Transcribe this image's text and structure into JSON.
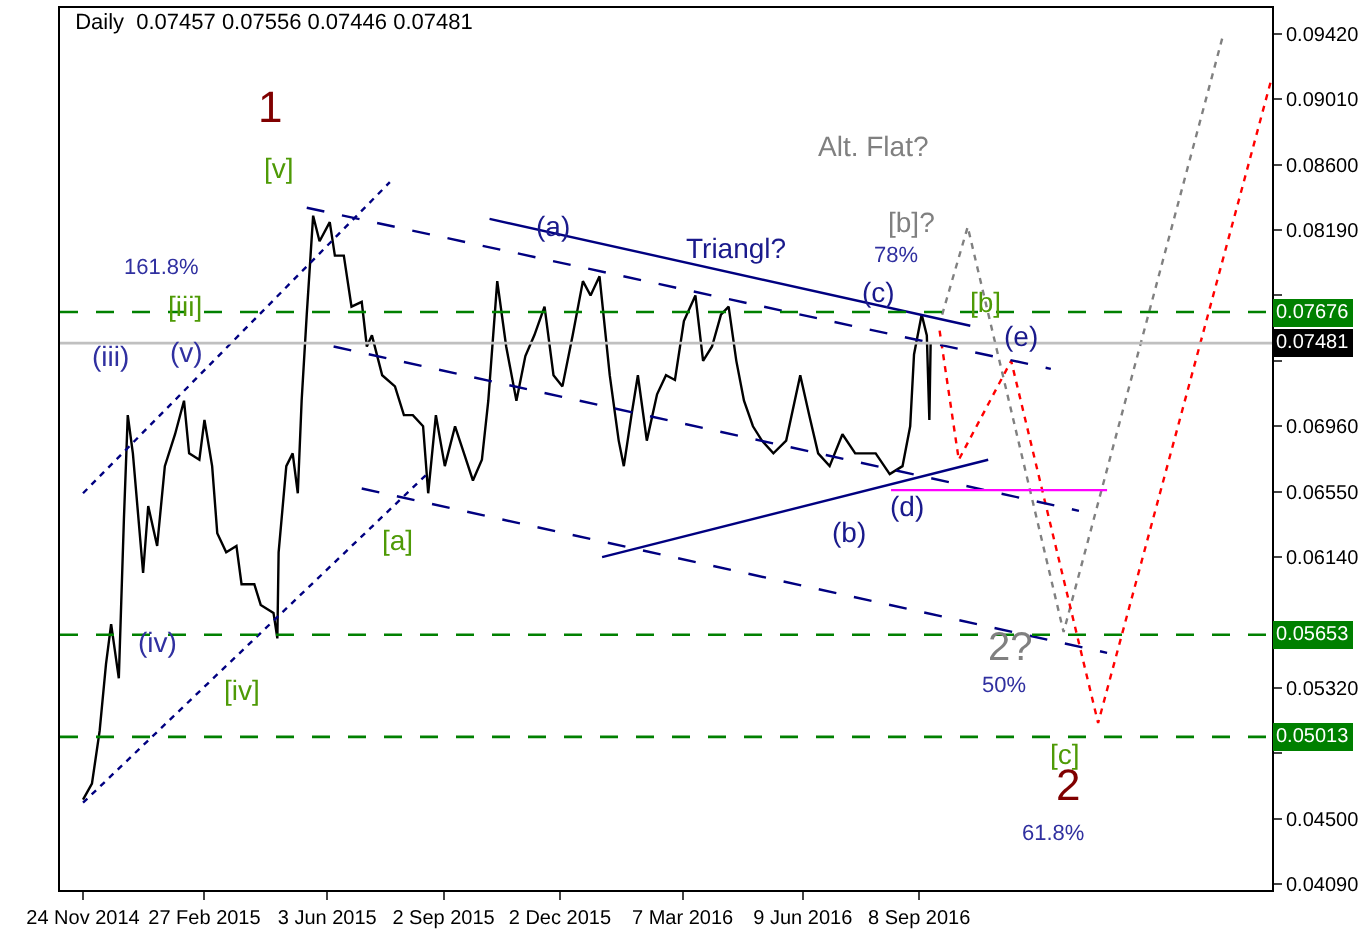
{
  "chart_data": {
    "type": "line",
    "title": "Daily  0.07457 0.07556 0.07446 0.07481",
    "series": [
      {
        "color": "#000000",
        "line_style": "solid",
        "x": [
          "2014-11-24",
          "2014-12-01",
          "2014-12-07",
          "2014-12-12",
          "2014-12-16",
          "2014-12-22",
          "2014-12-26",
          "2014-12-29",
          "2015-01-02",
          "2015-01-10",
          "2015-01-14",
          "2015-01-21",
          "2015-01-27",
          "2015-02-04",
          "2015-02-11",
          "2015-02-15",
          "2015-02-23",
          "2015-02-27",
          "2015-03-05",
          "2015-03-09",
          "2015-03-16",
          "2015-03-24",
          "2015-03-28",
          "2015-04-07",
          "2015-04-12",
          "2015-04-22",
          "2015-04-25",
          "2015-04-26",
          "2015-05-02",
          "2015-05-07",
          "2015-05-11",
          "2015-05-14",
          "2015-05-18",
          "2015-05-23",
          "2015-05-28",
          "2015-06-05",
          "2015-06-09",
          "2015-06-16",
          "2015-06-22",
          "2015-06-30",
          "2015-07-04",
          "2015-07-08",
          "2015-07-16",
          "2015-07-26",
          "2015-08-02",
          "2015-08-09",
          "2015-08-17",
          "2015-08-21",
          "2015-08-27",
          "2015-09-03",
          "2015-09-11",
          "2015-09-18",
          "2015-09-25",
          "2015-10-02",
          "2015-10-07",
          "2015-10-14",
          "2015-10-21",
          "2015-10-29",
          "2015-11-05",
          "2015-11-12",
          "2015-11-20",
          "2015-11-27",
          "2015-12-04",
          "2015-12-12",
          "2015-12-20",
          "2015-12-26",
          "2016-01-02",
          "2016-01-10",
          "2016-01-17",
          "2016-01-21",
          "2016-01-27",
          "2016-02-01",
          "2016-02-08",
          "2016-02-16",
          "2016-02-23",
          "2016-03-01",
          "2016-03-08",
          "2016-03-17",
          "2016-03-23",
          "2016-03-30",
          "2016-04-06",
          "2016-04-12",
          "2016-04-18",
          "2016-04-24",
          "2016-05-01",
          "2016-05-08",
          "2016-05-17",
          "2016-05-27",
          "2016-06-07",
          "2016-06-14",
          "2016-06-21",
          "2016-06-30",
          "2016-07-10",
          "2016-07-20",
          "2016-07-29",
          "2016-08-05",
          "2016-08-16",
          "2016-08-26",
          "2016-09-01",
          "2016-09-04",
          "2016-09-10",
          "2016-09-14",
          "2016-09-16",
          "2016-09-17"
        ],
        "values": [
          0.0462,
          0.0472,
          0.0505,
          0.0547,
          0.0572,
          0.0538,
          0.0638,
          0.0703,
          0.0679,
          0.0604,
          0.0646,
          0.0621,
          0.0671,
          0.0691,
          0.0712,
          0.0679,
          0.0675,
          0.07,
          0.0671,
          0.0629,
          0.0617,
          0.0621,
          0.0597,
          0.0597,
          0.0584,
          0.0579,
          0.0563,
          0.0617,
          0.0671,
          0.0679,
          0.0654,
          0.0712,
          0.0766,
          0.0828,
          0.0812,
          0.0824,
          0.0803,
          0.0803,
          0.0771,
          0.0774,
          0.0746,
          0.0753,
          0.0728,
          0.0721,
          0.0703,
          0.0703,
          0.0696,
          0.0654,
          0.0703,
          0.0671,
          0.0696,
          0.0679,
          0.0662,
          0.0675,
          0.0712,
          0.0787,
          0.0746,
          0.0712,
          0.074,
          0.0753,
          0.0771,
          0.0728,
          0.0721,
          0.0753,
          0.0787,
          0.0778,
          0.079,
          0.0728,
          0.0687,
          0.0671,
          0.0703,
          0.0728,
          0.0687,
          0.0716,
          0.0728,
          0.0725,
          0.0762,
          0.0778,
          0.0737,
          0.0746,
          0.0766,
          0.0771,
          0.0737,
          0.0712,
          0.0696,
          0.0687,
          0.0679,
          0.0687,
          0.0728,
          0.0703,
          0.0679,
          0.0671,
          0.0691,
          0.0679,
          0.0679,
          0.0679,
          0.0666,
          0.0671,
          0.0696,
          0.0741,
          0.0766,
          0.0753,
          0.07,
          0.0748
        ]
      },
      {
        "color": "#808080",
        "line_style": "dotted",
        "x": [
          "2016-09-26",
          "2016-10-16",
          "2016-12-30",
          "2017-05-04"
        ],
        "values": [
          0.0766,
          0.0821,
          0.0567,
          0.0942
        ]
      },
      {
        "color": "#ff0000",
        "line_style": "dotted",
        "x": [
          "2016-09-24",
          "2016-10-09",
          "2016-11-19",
          "2017-01-26",
          "2017-06-11"
        ],
        "values": [
          0.0756,
          0.0675,
          0.0737,
          0.051,
          0.0915
        ]
      },
      {
        "color": "#000080",
        "line_style": "solid",
        "x": [
          "2015-10-08",
          "2016-10-18"
        ],
        "values": [
          0.0826,
          0.0759
        ]
      },
      {
        "color": "#000080",
        "line_style": "solid",
        "x": [
          "2016-01-04",
          "2016-11-01"
        ],
        "values": [
          0.0614,
          0.0675
        ]
      },
      {
        "color": "#000080",
        "line_style": "dashed",
        "x": [
          "2015-05-18",
          "2016-12-20"
        ],
        "values": [
          0.0833,
          0.0732
        ]
      },
      {
        "color": "#000080",
        "line_style": "dashed",
        "x": [
          "2015-06-08",
          "2017-01-11"
        ],
        "values": [
          0.0746,
          0.0643
        ]
      },
      {
        "color": "#000080",
        "line_style": "dashed",
        "x": [
          "2015-06-30",
          "2017-02-02"
        ],
        "values": [
          0.0657,
          0.0554
        ]
      },
      {
        "color": "#000080",
        "line_style": "dotted",
        "x": [
          "2014-11-24",
          "2015-08-20"
        ],
        "values": [
          0.046,
          0.0666
        ]
      },
      {
        "color": "#000080",
        "line_style": "dotted",
        "x": [
          "2014-11-24",
          "2015-07-22"
        ],
        "values": [
          0.0654,
          0.0849
        ]
      },
      {
        "color": "#ff00ff",
        "line_style": "solid",
        "x": [
          "2016-08-17",
          "2017-02-02"
        ],
        "values": [
          0.0656,
          0.0656
        ]
      }
    ],
    "xlim": [
      "2014-11-06",
      "2017-06-11"
    ],
    "xticks": [
      {
        "value": "2014-11-24",
        "label": "24 Nov 2014"
      },
      {
        "value": "2015-02-27",
        "label": "27 Feb 2015"
      },
      {
        "value": "2015-06-03",
        "label": "3 Jun 2015"
      },
      {
        "value": "2015-09-02",
        "label": "2 Sep 2015"
      },
      {
        "value": "2015-12-02",
        "label": "2 Dec 2015"
      },
      {
        "value": "2016-03-07",
        "label": "7 Mar 2016"
      },
      {
        "value": "2016-06-09",
        "label": "9 Jun 2016"
      },
      {
        "value": "2016-09-08",
        "label": "8 Sep 2016"
      }
    ],
    "ylim": [
      0.04053,
      0.09582
    ],
    "yticks": [
      {
        "value": 0.0942,
        "label": "0.09420"
      },
      {
        "value": 0.0901,
        "label": "0.09010"
      },
      {
        "value": 0.086,
        "label": "0.08600"
      },
      {
        "value": 0.0819,
        "label": "0.08190"
      },
      {
        "value": 0.0778,
        "label": null
      },
      {
        "value": 0.0737,
        "label": null
      },
      {
        "value": 0.0696,
        "label": "0.06960"
      },
      {
        "value": 0.0655,
        "label": "0.06550"
      },
      {
        "value": 0.0614,
        "label": "0.06140"
      },
      {
        "value": 0.0573,
        "label": null
      },
      {
        "value": 0.0532,
        "label": "0.05320"
      },
      {
        "value": 0.0491,
        "label": null
      },
      {
        "value": 0.045,
        "label": "0.04500"
      },
      {
        "value": 0.0409,
        "label": "0.04090"
      }
    ],
    "ref_lines": [
      {
        "axis": "y",
        "value": 0.07676,
        "label": "0.07676",
        "color": "#008000",
        "line_style": "dashed"
      },
      {
        "axis": "y",
        "value": 0.05653,
        "label": "0.05653",
        "color": "#008000",
        "line_style": "dashed"
      },
      {
        "axis": "y",
        "value": 0.05013,
        "label": "0.05013",
        "color": "#008000",
        "line_style": "dashed"
      },
      {
        "axis": "y",
        "value": 0.07481,
        "label": "0.07481",
        "color": "#c0c0c0",
        "line_style": "solid"
      }
    ],
    "annotations": [
      "1",
      "[v]",
      "161.8%",
      {
        "text": "[iii]",
        "x": "2015-02-11",
        "y": 0.0771
      },
      "(iii)",
      {
        "text": "(v)",
        "x": "2015-02-12",
        "y": 0.0743
      },
      {
        "text": "(iv)",
        "x": "2015-01-21",
        "y": 0.0561
      },
      "[iv]",
      "[a]",
      "(a)",
      "Triangl?",
      "78%",
      "(c)",
      "(b)",
      "(d)",
      {
        "text": "(e)",
        "x": "2016-11-26",
        "y": 0.0753
      },
      "[b]",
      "[b]?",
      "Alt. Flat?",
      "2?",
      "50%",
      "[c]",
      "2",
      "61.8%"
    ]
  }
}
